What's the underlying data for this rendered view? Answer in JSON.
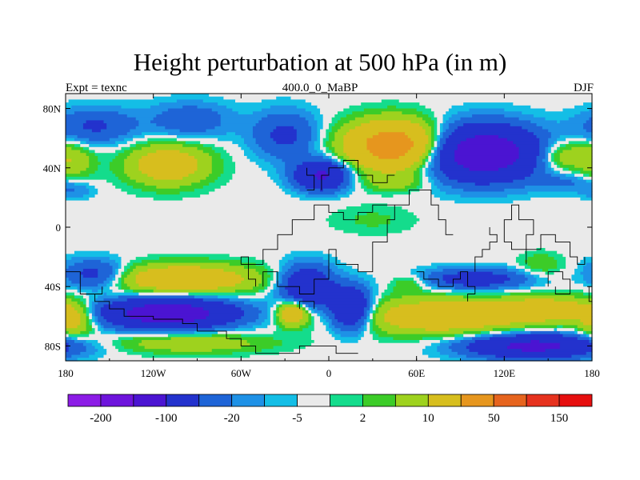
{
  "chart_data": {
    "type": "heatmap",
    "title": "Height perturbation at 500 hPa (in m)",
    "left_label": "Expt = texnc",
    "center_label": "400.0_0_MaBP",
    "right_label": "DJF",
    "x_ticks": [
      {
        "value": -180,
        "label": "180"
      },
      {
        "value": -120,
        "label": "120W"
      },
      {
        "value": -60,
        "label": "60W"
      },
      {
        "value": 0,
        "label": "0"
      },
      {
        "value": 60,
        "label": "60E"
      },
      {
        "value": 120,
        "label": "120E"
      },
      {
        "value": 180,
        "label": "180"
      }
    ],
    "y_ticks": [
      {
        "value": 80,
        "label": "80N"
      },
      {
        "value": 40,
        "label": "40N"
      },
      {
        "value": 0,
        "label": "0"
      },
      {
        "value": -40,
        "label": "40S"
      },
      {
        "value": -80,
        "label": "80S"
      }
    ],
    "xlim": [
      -180,
      180
    ],
    "ylim": [
      -90,
      90
    ],
    "colorbar": {
      "colors": [
        "#8c1ce6",
        "#6e14dc",
        "#4b14d2",
        "#2332cd",
        "#1e64d7",
        "#1e91e6",
        "#14bee6",
        "#eaeaea",
        "#14dc8c",
        "#3ccc28",
        "#9ed21e",
        "#d7be1e",
        "#e6961e",
        "#e6641e",
        "#e6321e",
        "#e60f0f"
      ],
      "labels": [
        {
          "boundary": 1,
          "label": "-200"
        },
        {
          "boundary": 3,
          "label": "-100"
        },
        {
          "boundary": 5,
          "label": "-20"
        },
        {
          "boundary": 7,
          "label": "-5"
        },
        {
          "boundary": 9,
          "label": "2"
        },
        {
          "boundary": 11,
          "label": "10"
        },
        {
          "boundary": 13,
          "label": "50"
        },
        {
          "boundary": 15,
          "label": "150"
        }
      ]
    },
    "anomalies": [
      {
        "lon": -160,
        "lat": 68,
        "lon_radius": 28,
        "lat_radius": 12,
        "amplitude": -22
      },
      {
        "lon": -95,
        "lat": 72,
        "lon_radius": 28,
        "lat_radius": 12,
        "amplitude": -18
      },
      {
        "lon": -110,
        "lat": 42,
        "lon_radius": 28,
        "lat_radius": 14,
        "amplitude": 34
      },
      {
        "lon": -175,
        "lat": 45,
        "lon_radius": 14,
        "lat_radius": 12,
        "amplitude": 18
      },
      {
        "lon": -175,
        "lat": 25,
        "lon_radius": 14,
        "lat_radius": 6,
        "amplitude": -10
      },
      {
        "lon": -30,
        "lat": 62,
        "lon_radius": 22,
        "lat_radius": 16,
        "amplitude": -24
      },
      {
        "lon": -5,
        "lat": 35,
        "lon_radius": 18,
        "lat_radius": 10,
        "amplitude": -55
      },
      {
        "lon": 45,
        "lat": 55,
        "lon_radius": 32,
        "lat_radius": 16,
        "amplitude": 75
      },
      {
        "lon": 45,
        "lat": 30,
        "lon_radius": 22,
        "lat_radius": 6,
        "amplitude": 12
      },
      {
        "lon": 105,
        "lat": 50,
        "lon_radius": 38,
        "lat_radius": 18,
        "amplitude": -80
      },
      {
        "lon": 160,
        "lat": 48,
        "lon_radius": 18,
        "lat_radius": 10,
        "amplitude": 22
      },
      {
        "lon": 160,
        "lat": 30,
        "lon_radius": 20,
        "lat_radius": 6,
        "amplitude": -10
      },
      {
        "lon": 30,
        "lat": 5,
        "lon_radius": 30,
        "lat_radius": 10,
        "amplitude": 6
      },
      {
        "lon": -160,
        "lat": -32,
        "lon_radius": 22,
        "lat_radius": 10,
        "amplitude": -30
      },
      {
        "lon": -100,
        "lat": -35,
        "lon_radius": 50,
        "lat_radius": 10,
        "amplitude": 40
      },
      {
        "lon": -175,
        "lat": -62,
        "lon_radius": 15,
        "lat_radius": 12,
        "amplitude": 30
      },
      {
        "lon": -110,
        "lat": -58,
        "lon_radius": 45,
        "lat_radius": 10,
        "amplitude": -75
      },
      {
        "lon": -95,
        "lat": -78,
        "lon_radius": 55,
        "lat_radius": 7,
        "amplitude": 18
      },
      {
        "lon": -15,
        "lat": -40,
        "lon_radius": 18,
        "lat_radius": 14,
        "amplitude": -45
      },
      {
        "lon": -25,
        "lat": -58,
        "lon_radius": 10,
        "lat_radius": 8,
        "amplitude": 45
      },
      {
        "lon": 15,
        "lat": -55,
        "lon_radius": 14,
        "lat_radius": 14,
        "amplitude": -55
      },
      {
        "lon": 55,
        "lat": -38,
        "lon_radius": 12,
        "lat_radius": 6,
        "amplitude": 12
      },
      {
        "lon": 100,
        "lat": -35,
        "lon_radius": 35,
        "lat_radius": 7,
        "amplitude": -32
      },
      {
        "lon": 80,
        "lat": -60,
        "lon_radius": 60,
        "lat_radius": 12,
        "amplitude": 38
      },
      {
        "lon": 150,
        "lat": -55,
        "lon_radius": 30,
        "lat_radius": 8,
        "amplitude": 30
      },
      {
        "lon": 140,
        "lat": -80,
        "lon_radius": 45,
        "lat_radius": 8,
        "amplitude": -60
      },
      {
        "lon": 145,
        "lat": -25,
        "lon_radius": 15,
        "lat_radius": 8,
        "amplitude": 10
      }
    ],
    "coastlines": [
      [
        [
          -180,
          -30
        ],
        [
          -170,
          -30
        ],
        [
          -170,
          -45
        ],
        [
          -160,
          -45
        ],
        [
          -160,
          -50
        ],
        [
          -150,
          -50
        ],
        [
          -150,
          -55
        ],
        [
          -140,
          -55
        ],
        [
          -140,
          -60
        ],
        [
          -120,
          -60
        ],
        [
          -120,
          -62
        ],
        [
          -100,
          -62
        ],
        [
          -100,
          -65
        ],
        [
          -90,
          -65
        ],
        [
          -90,
          -70
        ],
        [
          -70,
          -70
        ],
        [
          -70,
          -75
        ],
        [
          -60,
          -75
        ],
        [
          -60,
          -80
        ],
        [
          -50,
          -80
        ],
        [
          -50,
          -85
        ],
        [
          -20,
          -85
        ],
        [
          -20,
          -80
        ],
        [
          5,
          -80
        ],
        [
          5,
          -85
        ],
        [
          20,
          -85
        ]
      ],
      [
        [
          -50,
          -40
        ],
        [
          -50,
          -35
        ],
        [
          -55,
          -35
        ],
        [
          -55,
          -25
        ],
        [
          -45,
          -25
        ],
        [
          -45,
          -15
        ],
        [
          -35,
          -15
        ],
        [
          -35,
          -5
        ],
        [
          -25,
          -5
        ],
        [
          -25,
          5
        ],
        [
          -10,
          5
        ],
        [
          -10,
          15
        ],
        [
          0,
          15
        ],
        [
          0,
          10
        ],
        [
          10,
          10
        ],
        [
          10,
          5
        ],
        [
          20,
          5
        ],
        [
          20,
          10
        ],
        [
          30,
          10
        ],
        [
          30,
          15
        ],
        [
          45,
          15
        ],
        [
          45,
          5
        ],
        [
          40,
          5
        ],
        [
          40,
          -10
        ],
        [
          30,
          -10
        ],
        [
          30,
          -30
        ],
        [
          20,
          -30
        ],
        [
          20,
          -25
        ],
        [
          5,
          -25
        ],
        [
          5,
          -15
        ],
        [
          0,
          -15
        ],
        [
          0,
          -35
        ],
        [
          -10,
          -35
        ],
        [
          -10,
          -45
        ],
        [
          -20,
          -45
        ],
        [
          -20,
          -40
        ],
        [
          -35,
          -40
        ],
        [
          -35,
          -30
        ],
        [
          -45,
          -30
        ],
        [
          -45,
          -40
        ]
      ],
      [
        [
          45,
          15
        ],
        [
          55,
          15
        ],
        [
          55,
          25
        ],
        [
          70,
          25
        ],
        [
          70,
          15
        ],
        [
          75,
          15
        ],
        [
          75,
          5
        ],
        [
          80,
          5
        ],
        [
          80,
          -5
        ],
        [
          85,
          -5
        ]
      ],
      [
        [
          -5,
          25
        ],
        [
          -5,
          35
        ],
        [
          0,
          35
        ],
        [
          0,
          40
        ],
        [
          10,
          40
        ],
        [
          10,
          45
        ],
        [
          20,
          45
        ],
        [
          20,
          35
        ],
        [
          30,
          35
        ],
        [
          30,
          30
        ],
        [
          40,
          30
        ],
        [
          40,
          35
        ],
        [
          45,
          35
        ]
      ],
      [
        [
          -15,
          40
        ],
        [
          -15,
          35
        ],
        [
          -10,
          35
        ],
        [
          -10,
          25
        ],
        [
          -15,
          25
        ]
      ],
      [
        [
          95,
          -50
        ],
        [
          95,
          -45
        ],
        [
          100,
          -45
        ],
        [
          100,
          -40
        ],
        [
          95,
          -40
        ],
        [
          95,
          -30
        ],
        [
          90,
          -30
        ],
        [
          90,
          -35
        ],
        [
          85,
          -35
        ],
        [
          85,
          -40
        ],
        [
          75,
          -40
        ],
        [
          75,
          -35
        ],
        [
          65,
          -35
        ],
        [
          65,
          -30
        ],
        [
          60,
          -30
        ]
      ],
      [
        [
          100,
          -30
        ],
        [
          100,
          -20
        ],
        [
          105,
          -20
        ],
        [
          105,
          -15
        ],
        [
          110,
          -15
        ],
        [
          110,
          -10
        ],
        [
          115,
          -10
        ],
        [
          115,
          -5
        ],
        [
          110,
          -5
        ],
        [
          110,
          0
        ]
      ],
      [
        [
          120,
          -10
        ],
        [
          120,
          5
        ],
        [
          125,
          5
        ],
        [
          125,
          15
        ],
        [
          130,
          15
        ],
        [
          130,
          5
        ],
        [
          140,
          5
        ],
        [
          140,
          -5
        ],
        [
          135,
          -5
        ],
        [
          135,
          -15
        ],
        [
          125,
          -15
        ],
        [
          125,
          -10
        ],
        [
          120,
          -10
        ]
      ],
      [
        [
          135,
          -25
        ],
        [
          135,
          -15
        ],
        [
          145,
          -15
        ],
        [
          145,
          -5
        ],
        [
          155,
          -5
        ],
        [
          155,
          -10
        ],
        [
          165,
          -10
        ],
        [
          165,
          -20
        ],
        [
          170,
          -20
        ],
        [
          170,
          -25
        ],
        [
          175,
          -25
        ],
        [
          175,
          -20
        ]
      ],
      [
        [
          150,
          -40
        ],
        [
          150,
          -30
        ],
        [
          160,
          -30
        ],
        [
          160,
          -35
        ],
        [
          165,
          -35
        ],
        [
          165,
          -45
        ],
        [
          155,
          -45
        ],
        [
          155,
          -40
        ]
      ],
      [
        [
          178,
          -40
        ],
        [
          178,
          -50
        ],
        [
          180,
          -50
        ]
      ],
      [
        [
          -155,
          -40
        ],
        [
          -155,
          -45
        ],
        [
          -165,
          -45
        ]
      ],
      [
        [
          -60,
          -25
        ],
        [
          -60,
          -20
        ],
        [
          -55,
          -20
        ],
        [
          -55,
          -25
        ],
        [
          -60,
          -25
        ]
      ],
      [
        [
          -20,
          -55
        ],
        [
          -20,
          -50
        ],
        [
          -10,
          -50
        ],
        [
          -10,
          -55
        ]
      ]
    ]
  }
}
